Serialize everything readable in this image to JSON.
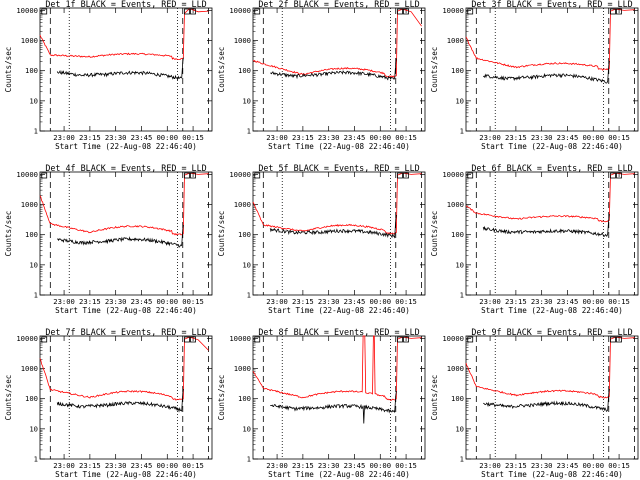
{
  "chart_data": {
    "type": "line",
    "x_tick_labels": [
      "23:00",
      "23:15",
      "23:30",
      "23:45",
      "00:00",
      "00:15"
    ],
    "x_ticks_min": [
      0,
      15,
      30,
      45,
      60,
      75
    ],
    "xlim_min": [
      -14,
      86
    ],
    "y_tick_labels": [
      "1",
      "10",
      "100",
      "1000",
      "10000"
    ],
    "y_ticks": [
      1,
      10,
      100,
      1000,
      10000
    ],
    "ylim": [
      1,
      12000
    ],
    "y_scale": "log",
    "ylabel": "Counts/sec",
    "xlabel": "Start Time (22-Aug-08 22:46:40)",
    "dashed_lines_min": [
      -8,
      69,
      84
    ],
    "dotted_lines_min": [
      3,
      66
    ],
    "black_color": "#000000",
    "red_color": "#ff0000",
    "panels": [
      {
        "title": "Det 1f BLACK = Events, RED = LLD",
        "red_start": 1500,
        "red_base": 330,
        "red_mid": 290,
        "red_bump": 1.25,
        "black_base": 90,
        "black_bump": 1.6,
        "spike": false,
        "red_tail": [
          8000,
          11500,
          9000,
          9500
        ]
      },
      {
        "title": "Det 2f BLACK = Events, RED = LLD",
        "red_start": 220,
        "red_base": 170,
        "red_mid": 75,
        "red_bump": 1.6,
        "black_base": 85,
        "black_bump": 1.7,
        "spike": false,
        "red_tail": [
          9500,
          11000,
          9000,
          3000
        ]
      },
      {
        "title": "Det 3f BLACK = Events, RED = LLD",
        "red_start": 1300,
        "red_base": 260,
        "red_mid": 130,
        "red_bump": 1.35,
        "black_base": 70,
        "black_bump": 1.7,
        "spike": false,
        "red_tail": [
          9500,
          11000,
          10000,
          10500
        ]
      },
      {
        "title": "Det 4f BLACK = Events, RED = LLD",
        "red_start": 2000,
        "red_base": 230,
        "red_mid": 120,
        "red_bump": 1.6,
        "black_base": 70,
        "black_bump": 1.7,
        "spike": false,
        "red_tail": [
          9500,
          11000,
          10000,
          10500
        ]
      },
      {
        "title": "Det 5f BLACK = Events, RED = LLD",
        "red_start": 1200,
        "red_base": 210,
        "red_mid": 130,
        "red_bump": 1.6,
        "black_base": 150,
        "black_bump": 1.5,
        "spike": false,
        "red_tail": [
          9500,
          11000,
          10000,
          10500
        ]
      },
      {
        "title": "Det 6f BLACK = Events, RED = LLD",
        "red_start": 900,
        "red_base": 520,
        "red_mid": 330,
        "red_bump": 1.25,
        "black_base": 160,
        "black_bump": 1.4,
        "spike": false,
        "red_tail": [
          9500,
          11000,
          10000,
          10500
        ]
      },
      {
        "title": "Det 7f BLACK = Events, RED = LLD",
        "red_start": 2200,
        "red_base": 200,
        "red_mid": 110,
        "red_bump": 1.6,
        "black_base": 70,
        "black_bump": 1.7,
        "spike": false,
        "red_tail": [
          9500,
          11000,
          9000,
          4000
        ]
      },
      {
        "title": "Det 8f BLACK = Events, RED = LLD",
        "red_start": 800,
        "red_base": 220,
        "red_mid": 110,
        "red_bump": 1.6,
        "black_base": 60,
        "black_bump": 1.6,
        "spike": true,
        "red_tail": [
          9500,
          11000,
          10000,
          10500
        ]
      },
      {
        "title": "Det 9f BLACK = Events, RED = LLD",
        "red_start": 1500,
        "red_base": 250,
        "red_mid": 130,
        "red_bump": 1.4,
        "black_base": 70,
        "black_bump": 1.7,
        "spike": false,
        "red_tail": [
          9500,
          11000,
          10000,
          10500
        ]
      }
    ]
  }
}
